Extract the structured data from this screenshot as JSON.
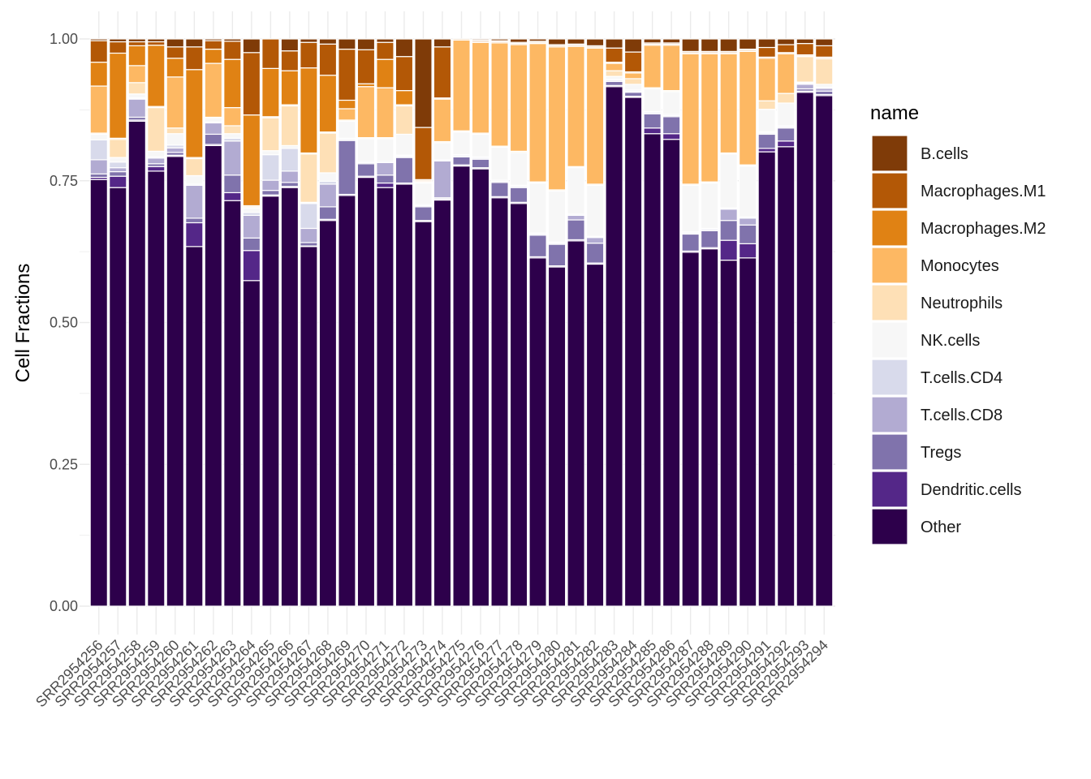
{
  "chart_data": {
    "type": "bar",
    "stacked": true,
    "ylabel": "Cell Fractions",
    "xlabel": "",
    "ylim": [
      0,
      1
    ],
    "yticks": [
      "0.00",
      "0.25",
      "0.50",
      "0.75",
      "1.00"
    ],
    "grid": true,
    "legend_title": "name",
    "legend_position": "right",
    "categories": [
      "SRR2954256",
      "SRR2954257",
      "SRR2954258",
      "SRR2954259",
      "SRR2954260",
      "SRR2954261",
      "SRR2954262",
      "SRR2954263",
      "SRR2954264",
      "SRR2954265",
      "SRR2954266",
      "SRR2954267",
      "SRR2954268",
      "SRR2954269",
      "SRR2954270",
      "SRR2954271",
      "SRR2954272",
      "SRR2954273",
      "SRR2954274",
      "SRR2954275",
      "SRR2954276",
      "SRR2954277",
      "SRR2954278",
      "SRR2954279",
      "SRR2954280",
      "SRR2954281",
      "SRR2954282",
      "SRR2954283",
      "SRR2954284",
      "SRR2954285",
      "SRR2954286",
      "SRR2954287",
      "SRR2954288",
      "SRR2954289",
      "SRR2954290",
      "SRR2954291",
      "SRR2954292",
      "SRR2954293",
      "SRR2954294"
    ],
    "series": [
      {
        "name": "Other",
        "color": "#2d004b",
        "values": [
          0.752,
          0.738,
          0.855,
          0.767,
          0.793,
          0.634,
          0.812,
          0.715,
          0.574,
          0.723,
          0.738,
          0.634,
          0.68,
          0.724,
          0.756,
          0.738,
          0.744,
          0.678,
          0.716,
          0.776,
          0.771,
          0.72,
          0.71,
          0.614,
          0.598,
          0.644,
          0.603,
          0.916,
          0.897,
          0.833,
          0.823,
          0.624,
          0.63,
          0.61,
          0.614,
          0.801,
          0.81,
          0.906,
          0.9
        ]
      },
      {
        "name": "Dendritic.cells",
        "color": "#542788",
        "values": [
          0.004,
          0.02,
          0.002,
          0.008,
          0.002,
          0.042,
          0.002,
          0.014,
          0.053,
          0.002,
          0.002,
          0.001,
          0.002,
          0.002,
          0.002,
          0.008,
          0.002,
          0.002,
          0.002,
          0.002,
          0.002,
          0.002,
          0.002,
          0.002,
          0.002,
          0.002,
          0.002,
          0.002,
          0.002,
          0.01,
          0.01,
          0.002,
          0.002,
          0.035,
          0.025,
          0.006,
          0.01,
          0.002,
          0.002
        ]
      },
      {
        "name": "Tregs",
        "color": "#8073ac",
        "values": [
          0.006,
          0.008,
          0.005,
          0.005,
          0.005,
          0.008,
          0.018,
          0.031,
          0.022,
          0.008,
          0.007,
          0.006,
          0.022,
          0.095,
          0.022,
          0.014,
          0.045,
          0.024,
          0.002,
          0.014,
          0.015,
          0.025,
          0.026,
          0.038,
          0.038,
          0.035,
          0.035,
          0.007,
          0.007,
          0.025,
          0.03,
          0.03,
          0.03,
          0.035,
          0.033,
          0.025,
          0.023,
          0.004,
          0.006
        ]
      },
      {
        "name": "T.cells.CD8",
        "color": "#b2abd2",
        "values": [
          0.025,
          0.007,
          0.032,
          0.01,
          0.008,
          0.058,
          0.02,
          0.06,
          0.04,
          0.018,
          0.02,
          0.025,
          0.04,
          0.002,
          0.002,
          0.022,
          0.002,
          0.002,
          0.065,
          0.002,
          0.002,
          0.002,
          0.002,
          0.002,
          0.002,
          0.008,
          0.01,
          0.002,
          0.002,
          0.002,
          0.002,
          0.002,
          0.002,
          0.02,
          0.012,
          0.002,
          0.002,
          0.008,
          0.005
        ]
      },
      {
        "name": "T.cells.CD4",
        "color": "#d8daeb",
        "values": [
          0.035,
          0.01,
          0.002,
          0.002,
          0.005,
          0.002,
          0.002,
          0.005,
          0.005,
          0.045,
          0.04,
          0.044,
          0.005,
          0.002,
          0.002,
          0.002,
          0.002,
          0.002,
          0.002,
          0.002,
          0.002,
          0.002,
          0.002,
          0.002,
          0.002,
          0.002,
          0.002,
          0.002,
          0.002,
          0.002,
          0.002,
          0.002,
          0.002,
          0.002,
          0.002,
          0.002,
          0.002,
          0.002,
          0.002
        ]
      },
      {
        "name": "NK.cells",
        "color": "#f7f7f7",
        "values": [
          0.01,
          0.008,
          0.007,
          0.01,
          0.02,
          0.015,
          0.006,
          0.008,
          0.008,
          0.007,
          0.005,
          0.002,
          0.015,
          0.03,
          0.04,
          0.04,
          0.037,
          0.038,
          0.03,
          0.04,
          0.04,
          0.058,
          0.058,
          0.088,
          0.09,
          0.082,
          0.09,
          0.005,
          0.01,
          0.04,
          0.04,
          0.082,
          0.08,
          0.095,
          0.09,
          0.04,
          0.04,
          0.002,
          0.005
        ]
      },
      {
        "name": "Neutrophils",
        "color": "#fee0b6",
        "values": [
          0.002,
          0.032,
          0.02,
          0.077,
          0.01,
          0.03,
          0.002,
          0.014,
          0.002,
          0.058,
          0.07,
          0.085,
          0.07,
          0.002,
          0.002,
          0.002,
          0.05,
          0.002,
          0.002,
          0.002,
          0.002,
          0.002,
          0.002,
          0.002,
          0.002,
          0.002,
          0.002,
          0.01,
          0.01,
          0.002,
          0.002,
          0.002,
          0.002,
          0.002,
          0.002,
          0.015,
          0.017,
          0.045,
          0.045
        ]
      },
      {
        "name": "Monocytes",
        "color": "#fdb863",
        "values": [
          0.083,
          0.002,
          0.03,
          0.002,
          0.09,
          0.002,
          0.095,
          0.032,
          0.002,
          0.002,
          0.002,
          0.002,
          0.002,
          0.02,
          0.09,
          0.088,
          0.002,
          0.002,
          0.075,
          0.16,
          0.16,
          0.182,
          0.188,
          0.244,
          0.252,
          0.212,
          0.24,
          0.013,
          0.01,
          0.075,
          0.08,
          0.23,
          0.226,
          0.175,
          0.2,
          0.075,
          0.07,
          0.001,
          0.001
        ]
      },
      {
        "name": "Macrophages.M2",
        "color": "#e08214",
        "values": [
          0.042,
          0.15,
          0.035,
          0.108,
          0.033,
          0.155,
          0.025,
          0.085,
          0.16,
          0.085,
          0.06,
          0.15,
          0.1,
          0.015,
          0.005,
          0.05,
          0.025,
          0.002,
          0.002,
          0.002,
          0.002,
          0.002,
          0.002,
          0.002,
          0.002,
          0.002,
          0.002,
          0.002,
          0.002,
          0.002,
          0.002,
          0.002,
          0.002,
          0.002,
          0.002,
          0.002,
          0.002,
          0.002,
          0.002
        ]
      },
      {
        "name": "Macrophages.M1",
        "color": "#b35806",
        "values": [
          0.038,
          0.02,
          0.007,
          0.006,
          0.02,
          0.04,
          0.015,
          0.032,
          0.11,
          0.052,
          0.035,
          0.045,
          0.055,
          0.09,
          0.06,
          0.03,
          0.06,
          0.092,
          0.09,
          0.002,
          0.002,
          0.002,
          0.002,
          0.002,
          0.002,
          0.002,
          0.002,
          0.025,
          0.035,
          0.002,
          0.002,
          0.002,
          0.002,
          0.002,
          0.002,
          0.017,
          0.014,
          0.02,
          0.02
        ]
      },
      {
        "name": "B.cells",
        "color": "#7f3b08",
        "values": [
          0.003,
          0.005,
          0.005,
          0.005,
          0.014,
          0.014,
          0.003,
          0.019,
          0.024,
          0.0,
          0.021,
          0.006,
          0.009,
          0.018,
          0.019,
          0.006,
          0.031,
          0.156,
          0.014,
          0.004,
          0.006,
          0.011,
          0.012,
          0.012,
          0.012,
          0.017,
          0.013,
          0.016,
          0.023,
          0.007,
          0.007,
          0.032,
          0.034,
          0.022,
          0.018,
          0.025,
          0.02,
          0.01,
          0.012
        ]
      }
    ],
    "legend_order": [
      "B.cells",
      "Macrophages.M1",
      "Macrophages.M2",
      "Monocytes",
      "Neutrophils",
      "NK.cells",
      "T.cells.CD4",
      "T.cells.CD8",
      "Tregs",
      "Dendritic.cells",
      "Other"
    ]
  }
}
